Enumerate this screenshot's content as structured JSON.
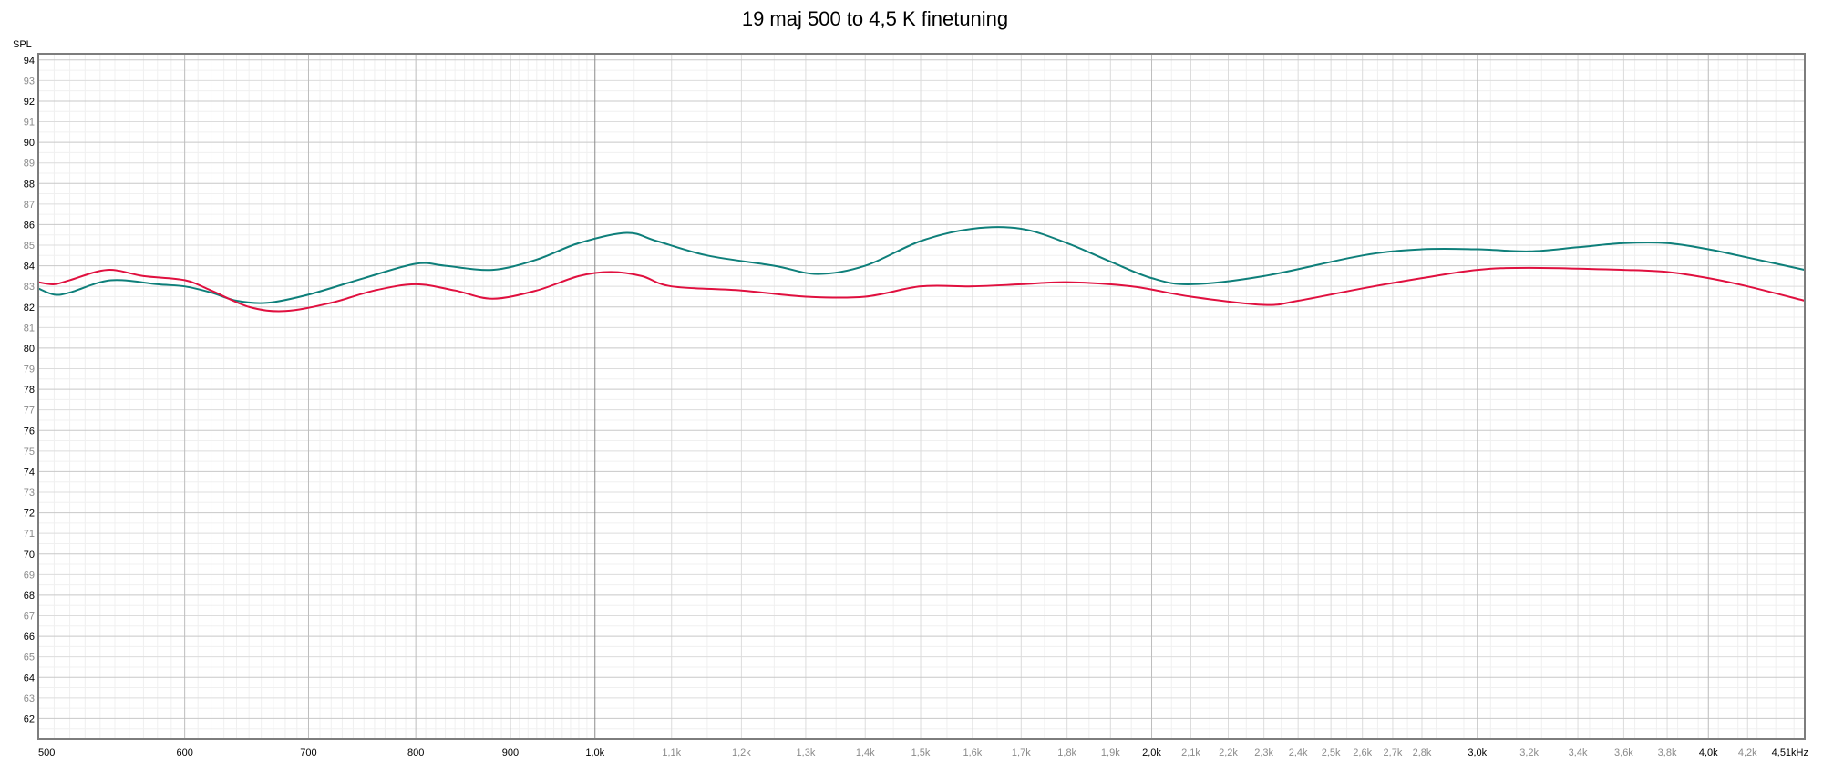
{
  "chart_data": {
    "type": "line",
    "title": "19 maj 500 to 4,5 K finetuning",
    "ylabel": "SPL",
    "xlabel": "",
    "x_scale": "log",
    "xlim": [
      500,
      4510
    ],
    "ylim": [
      61,
      94.3
    ],
    "grid": true,
    "y_ticks_major": [
      62,
      64,
      66,
      68,
      70,
      72,
      74,
      76,
      78,
      80,
      82,
      84,
      86,
      88,
      90,
      92,
      94
    ],
    "y_ticks_minor": [
      63,
      65,
      67,
      69,
      71,
      73,
      75,
      77,
      79,
      81,
      83,
      85,
      87,
      89,
      91,
      93
    ],
    "x_ticks_major": [
      {
        "value": 500,
        "label": "500"
      },
      {
        "value": 600,
        "label": "600"
      },
      {
        "value": 700,
        "label": "700"
      },
      {
        "value": 800,
        "label": "800"
      },
      {
        "value": 900,
        "label": "900"
      },
      {
        "value": 1000,
        "label": "1,0k"
      },
      {
        "value": 2000,
        "label": "2,0k"
      },
      {
        "value": 3000,
        "label": "3,0k"
      },
      {
        "value": 4000,
        "label": "4,0k"
      },
      {
        "value": 4510,
        "label": "4,51kHz"
      }
    ],
    "x_ticks_minor": [
      {
        "value": 1100,
        "label": "1,1k"
      },
      {
        "value": 1200,
        "label": "1,2k"
      },
      {
        "value": 1300,
        "label": "1,3k"
      },
      {
        "value": 1400,
        "label": "1,4k"
      },
      {
        "value": 1500,
        "label": "1,5k"
      },
      {
        "value": 1600,
        "label": "1,6k"
      },
      {
        "value": 1700,
        "label": "1,7k"
      },
      {
        "value": 1800,
        "label": "1,8k"
      },
      {
        "value": 1900,
        "label": "1,9k"
      },
      {
        "value": 2100,
        "label": "2,1k"
      },
      {
        "value": 2200,
        "label": "2,2k"
      },
      {
        "value": 2300,
        "label": "2,3k"
      },
      {
        "value": 2400,
        "label": "2,4k"
      },
      {
        "value": 2500,
        "label": "2,5k"
      },
      {
        "value": 2600,
        "label": "2,6k"
      },
      {
        "value": 2700,
        "label": "2,7k"
      },
      {
        "value": 2800,
        "label": "2,8k"
      },
      {
        "value": 3200,
        "label": "3,2k"
      },
      {
        "value": 3400,
        "label": "3,4k"
      },
      {
        "value": 3600,
        "label": "3,6k"
      },
      {
        "value": 3800,
        "label": "3,8k"
      },
      {
        "value": 4200,
        "label": "4,2k"
      }
    ],
    "series": [
      {
        "color": "#0e7f7a",
        "points": [
          [
            500,
            82.9
          ],
          [
            510,
            82.6
          ],
          [
            520,
            82.7
          ],
          [
            540,
            83.2
          ],
          [
            555,
            83.3
          ],
          [
            580,
            83.1
          ],
          [
            600,
            83.0
          ],
          [
            620,
            82.7
          ],
          [
            640,
            82.3
          ],
          [
            665,
            82.2
          ],
          [
            700,
            82.6
          ],
          [
            750,
            83.4
          ],
          [
            800,
            84.1
          ],
          [
            830,
            84.0
          ],
          [
            880,
            83.8
          ],
          [
            930,
            84.3
          ],
          [
            980,
            85.1
          ],
          [
            1040,
            85.6
          ],
          [
            1080,
            85.2
          ],
          [
            1150,
            84.5
          ],
          [
            1250,
            84.0
          ],
          [
            1320,
            83.6
          ],
          [
            1400,
            84.0
          ],
          [
            1500,
            85.2
          ],
          [
            1600,
            85.8
          ],
          [
            1700,
            85.8
          ],
          [
            1800,
            85.1
          ],
          [
            1900,
            84.2
          ],
          [
            2000,
            83.4
          ],
          [
            2100,
            83.1
          ],
          [
            2300,
            83.5
          ],
          [
            2600,
            84.5
          ],
          [
            2800,
            84.8
          ],
          [
            3000,
            84.8
          ],
          [
            3200,
            84.7
          ],
          [
            3400,
            84.9
          ],
          [
            3600,
            85.1
          ],
          [
            3800,
            85.1
          ],
          [
            4000,
            84.8
          ],
          [
            4200,
            84.4
          ],
          [
            4510,
            83.8
          ]
        ]
      },
      {
        "color": "#e0103f",
        "points": [
          [
            500,
            83.2
          ],
          [
            510,
            83.1
          ],
          [
            520,
            83.3
          ],
          [
            545,
            83.8
          ],
          [
            570,
            83.5
          ],
          [
            600,
            83.3
          ],
          [
            620,
            82.8
          ],
          [
            650,
            82.0
          ],
          [
            680,
            81.8
          ],
          [
            720,
            82.2
          ],
          [
            760,
            82.8
          ],
          [
            800,
            83.1
          ],
          [
            840,
            82.8
          ],
          [
            880,
            82.4
          ],
          [
            930,
            82.8
          ],
          [
            980,
            83.5
          ],
          [
            1020,
            83.7
          ],
          [
            1060,
            83.5
          ],
          [
            1100,
            83.0
          ],
          [
            1200,
            82.8
          ],
          [
            1300,
            82.5
          ],
          [
            1400,
            82.5
          ],
          [
            1500,
            83.0
          ],
          [
            1600,
            83.0
          ],
          [
            1700,
            83.1
          ],
          [
            1800,
            83.2
          ],
          [
            1950,
            83.0
          ],
          [
            2100,
            82.5
          ],
          [
            2300,
            82.1
          ],
          [
            2400,
            82.3
          ],
          [
            2600,
            82.9
          ],
          [
            2800,
            83.4
          ],
          [
            3000,
            83.8
          ],
          [
            3200,
            83.9
          ],
          [
            3600,
            83.8
          ],
          [
            3800,
            83.7
          ],
          [
            4000,
            83.4
          ],
          [
            4200,
            83.0
          ],
          [
            4510,
            82.3
          ]
        ]
      }
    ]
  }
}
